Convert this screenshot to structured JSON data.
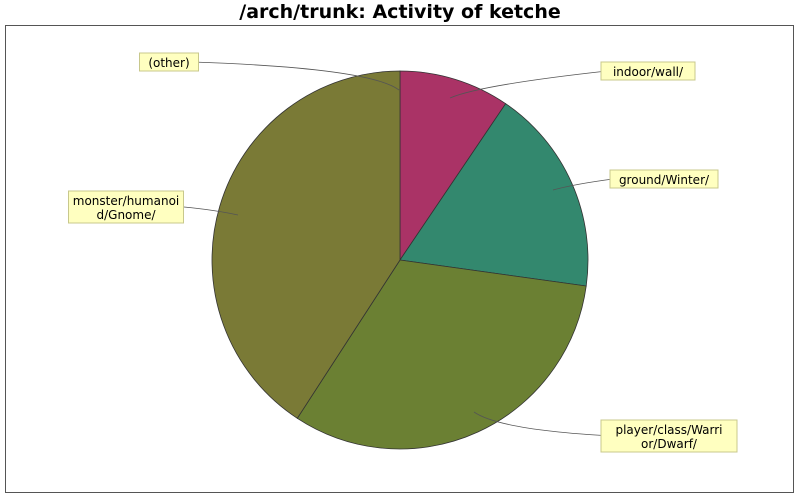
{
  "chart_data": {
    "type": "pie",
    "title": "/arch/trunk: Activity of ketche",
    "start_angle_deg": 90,
    "direction": "clockwise",
    "slices": [
      {
        "label": "indoor/wall/",
        "value": 9.5,
        "color": "#aa3366"
      },
      {
        "label": "ground/Winter/",
        "value": 17.7,
        "color": "#33886e"
      },
      {
        "label": "player/class/Warrior/Dwarf/",
        "value": 32.0,
        "color": "#6b8033"
      },
      {
        "label": "monster/humanoid/Gnome/",
        "value": 40.8,
        "color": "#7a7a36"
      },
      {
        "label": "(other)",
        "value": 0.0,
        "color": "#9999aa"
      }
    ],
    "callouts": [
      {
        "lines": [
          "indoor/wall/"
        ]
      },
      {
        "lines": [
          "ground/Winter/"
        ]
      },
      {
        "lines": [
          "player/class/Warri",
          "or/Dwarf/"
        ]
      },
      {
        "lines": [
          "monster/humanoi",
          "d/Gnome/"
        ]
      },
      {
        "lines": [
          "(other)"
        ]
      }
    ],
    "label_box_fill": "#ffffc0",
    "label_box_stroke": "#c8c88c",
    "leader_color": "#555555"
  }
}
